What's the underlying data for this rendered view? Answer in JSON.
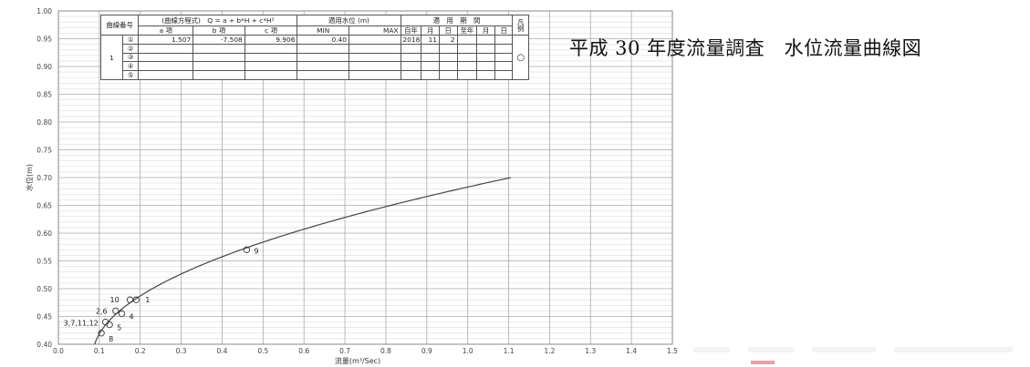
{
  "page_title": "平成 30 年度流量調査　水位流量曲線図",
  "table": {
    "header_curve_no": "曲線番号",
    "header_formula": "(曲線方程式)　Q = a + b*H + c*H²",
    "header_a": "a 項",
    "header_b": "b 項",
    "header_c": "c 項",
    "header_level": "適用水位 (m)",
    "header_min": "MIN",
    "header_max": "MAX",
    "header_period": "適　用　期　間",
    "header_from_year": "自年",
    "header_month": "月",
    "header_day": "日",
    "header_to_year": "至年",
    "header_month2": "月",
    "header_day2": "日",
    "header_legend": "凡例",
    "curve_no": "1",
    "rows": [
      {
        "num": "①",
        "a": "1.507",
        "b": "-7.508",
        "c": "9.906",
        "min": "0.40",
        "year": "2018",
        "month": "11",
        "day": "2",
        "legend": "○"
      },
      {
        "num": "②"
      },
      {
        "num": "③"
      },
      {
        "num": "④"
      },
      {
        "num": "⑤"
      }
    ]
  },
  "chart_data": {
    "type": "scatter",
    "xlabel": "流量(m³/Sec)",
    "ylabel": "水位(m)",
    "xlim": [
      0,
      1.5
    ],
    "ylim": [
      0.4,
      1.0
    ],
    "x_ticks": [
      "0.0",
      "0.1",
      "0.2",
      "0.3",
      "0.4",
      "0.5",
      "0.6",
      "0.7",
      "0.8",
      "0.9",
      "1.0",
      "1.1",
      "1.2",
      "1.3",
      "1.4",
      "1.5"
    ],
    "y_ticks": [
      "0.40",
      "0.45",
      "0.50",
      "0.55",
      "0.60",
      "0.65",
      "0.70",
      "0.75",
      "0.80",
      "0.85",
      "0.90",
      "0.95",
      "1.00"
    ],
    "curve": {
      "equation": "Q = 1.507 - 7.508H + 9.906H²",
      "a": 1.507,
      "b": -7.508,
      "c": 9.906,
      "h_min": 0.4,
      "h_max": 0.7
    },
    "points": [
      {
        "label": "1",
        "x": 0.19,
        "y": 0.48
      },
      {
        "label": "10",
        "x": 0.175,
        "y": 0.48
      },
      {
        "label": "2,6",
        "x": 0.14,
        "y": 0.46
      },
      {
        "label": "4",
        "x": 0.155,
        "y": 0.455
      },
      {
        "label": "3,7,11,12",
        "x": 0.115,
        "y": 0.44
      },
      {
        "label": "5",
        "x": 0.125,
        "y": 0.435
      },
      {
        "label": "8",
        "x": 0.105,
        "y": 0.42
      },
      {
        "label": "9",
        "x": 0.46,
        "y": 0.57
      }
    ],
    "point_label_offsets": {
      "1": [
        10,
        3
      ],
      "10": [
        -22,
        3
      ],
      "2,6": [
        -22,
        3
      ],
      "4": [
        8,
        6
      ],
      "3,7,11,12": [
        -46,
        4
      ],
      "5": [
        8,
        6
      ],
      "8": [
        8,
        9
      ],
      "9": [
        8,
        4
      ]
    }
  }
}
